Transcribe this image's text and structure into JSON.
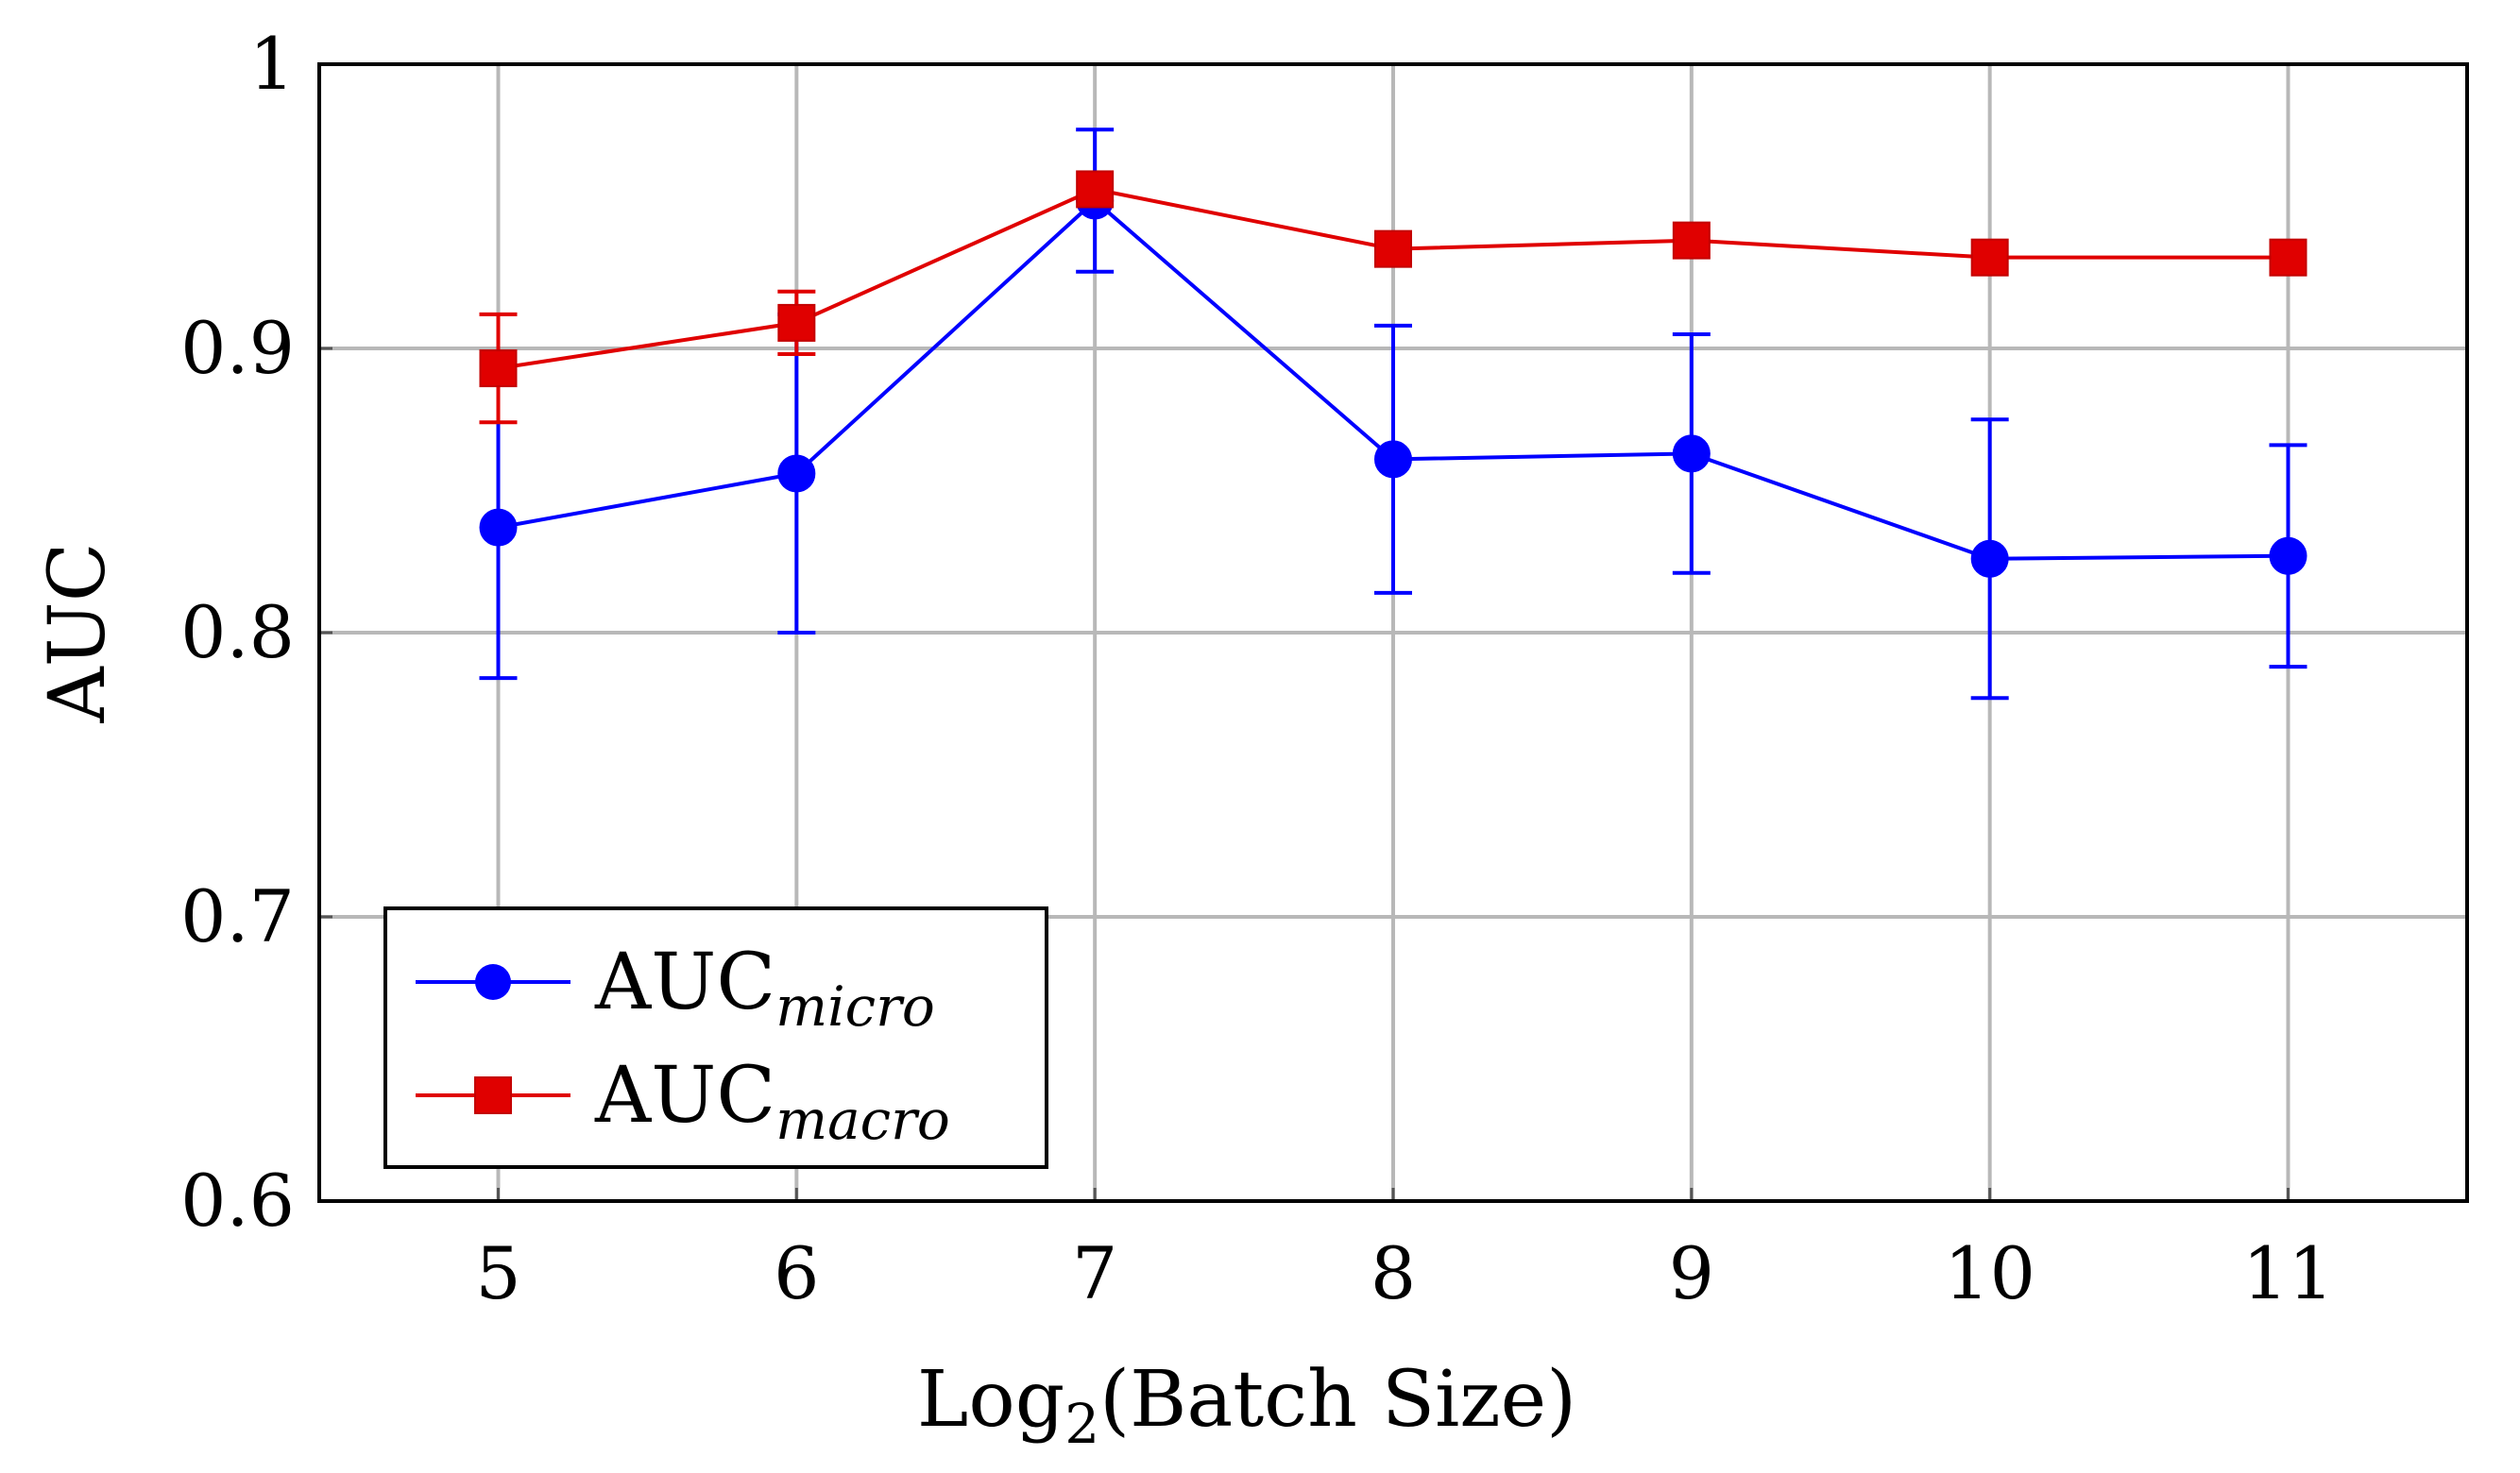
{
  "chart_data": {
    "type": "line",
    "title": "",
    "xlabel": "Log",
    "xlabel_subscript": "2",
    "xlabel_suffix": "(Batch Size)",
    "ylabel": "AUC",
    "x": [
      5,
      6,
      7,
      8,
      9,
      10,
      11
    ],
    "x_tick_labels": [
      "5",
      "6",
      "7",
      "8",
      "9",
      "10",
      "11"
    ],
    "y_tick_labels": [
      "0.6",
      "0.7",
      "0.8",
      "0.9",
      "1"
    ],
    "y_ticks": [
      0.6,
      0.7,
      0.8,
      0.9,
      1.0
    ],
    "xlim": [
      4.4,
      11.6
    ],
    "ylim": [
      0.6,
      1.0
    ],
    "grid": true,
    "legend_position": "bottom-left",
    "series": [
      {
        "name": "AUC_micro",
        "label_main": "AUC",
        "label_sub": "micro",
        "marker": "circle",
        "color": "#0000ff",
        "values": [
          0.837,
          0.856,
          0.952,
          0.861,
          0.863,
          0.826,
          0.827
        ],
        "error_low": [
          0.784,
          0.8,
          0.927,
          0.814,
          0.821,
          0.777,
          0.788
        ],
        "error_high": [
          0.89,
          0.912,
          0.977,
          0.908,
          0.905,
          0.875,
          0.866
        ]
      },
      {
        "name": "AUC_macro",
        "label_main": "AUC",
        "label_sub": "macro",
        "marker": "square",
        "color": "#e00000",
        "values": [
          0.893,
          0.909,
          0.956,
          0.935,
          0.938,
          0.932,
          0.932
        ],
        "error_low": [
          0.874,
          0.898,
          null,
          null,
          null,
          null,
          null
        ],
        "error_high": [
          0.912,
          0.92,
          null,
          null,
          null,
          null,
          null
        ]
      }
    ]
  }
}
